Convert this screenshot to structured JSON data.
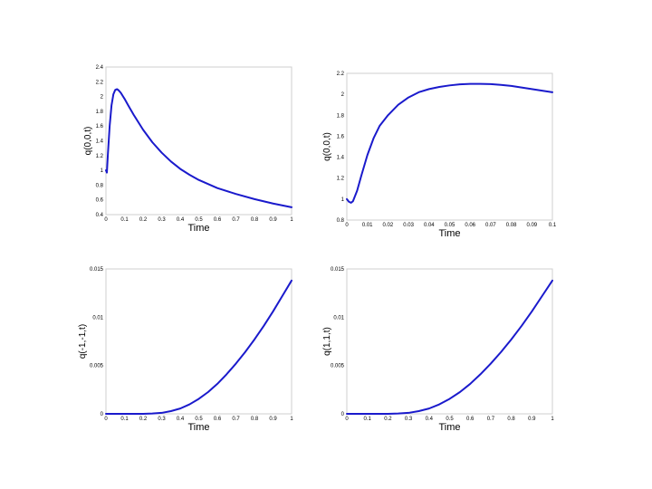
{
  "chart_data": [
    {
      "type": "line",
      "xlabel": "Time",
      "ylabel": "q(0,0,t)",
      "xlim": [
        0,
        1
      ],
      "ylim": [
        0.4,
        2.4
      ],
      "xticks": [
        "0",
        "0.1",
        "0.2",
        "0.3",
        "0.4",
        "0.5",
        "0.6",
        "0.7",
        "0.8",
        "0.9",
        "1"
      ],
      "yticks": [
        "0.4",
        "0.6",
        "0.8",
        "1",
        "1.2",
        "1.4",
        "1.6",
        "1.8",
        "2",
        "2.2",
        "2.4"
      ],
      "grid": false,
      "series": [
        {
          "color": "#1a1acc",
          "x": [
            0,
            0.005,
            0.01,
            0.02,
            0.03,
            0.04,
            0.05,
            0.06,
            0.07,
            0.08,
            0.1,
            0.12,
            0.15,
            0.2,
            0.25,
            0.3,
            0.35,
            0.4,
            0.45,
            0.5,
            0.6,
            0.7,
            0.8,
            0.9,
            1.0
          ],
          "y": [
            1.0,
            0.97,
            1.2,
            1.6,
            1.88,
            2.03,
            2.09,
            2.1,
            2.08,
            2.05,
            1.97,
            1.88,
            1.75,
            1.55,
            1.38,
            1.24,
            1.12,
            1.02,
            0.94,
            0.87,
            0.76,
            0.68,
            0.61,
            0.55,
            0.5
          ]
        }
      ]
    },
    {
      "type": "line",
      "xlabel": "Time",
      "ylabel": "q(0,0,t)",
      "xlim": [
        0,
        0.1
      ],
      "ylim": [
        0.8,
        2.2
      ],
      "xticks": [
        "0",
        "0.01",
        "0.02",
        "0.03",
        "0.04",
        "0.05",
        "0.06",
        "0.07",
        "0.08",
        "0.09",
        "0.1"
      ],
      "yticks": [
        "0.8",
        "1",
        "1.2",
        "1.4",
        "1.6",
        "1.8",
        "2",
        "2.2"
      ],
      "grid": false,
      "series": [
        {
          "color": "#1a1acc",
          "x": [
            0,
            0.001,
            0.002,
            0.003,
            0.005,
            0.007,
            0.01,
            0.013,
            0.016,
            0.02,
            0.025,
            0.03,
            0.035,
            0.04,
            0.045,
            0.05,
            0.055,
            0.06,
            0.065,
            0.07,
            0.075,
            0.08,
            0.085,
            0.09,
            0.095,
            0.1
          ],
          "y": [
            1.0,
            0.975,
            0.965,
            0.98,
            1.08,
            1.22,
            1.42,
            1.58,
            1.7,
            1.8,
            1.9,
            1.97,
            2.02,
            2.05,
            2.07,
            2.085,
            2.095,
            2.1,
            2.1,
            2.097,
            2.09,
            2.08,
            2.065,
            2.05,
            2.035,
            2.02
          ]
        }
      ]
    },
    {
      "type": "line",
      "xlabel": "Time",
      "ylabel": "q(-1,-1,t)",
      "xlim": [
        0,
        1
      ],
      "ylim": [
        0,
        0.015
      ],
      "xticks": [
        "0",
        "0.1",
        "0.2",
        "0.3",
        "0.4",
        "0.5",
        "0.6",
        "0.7",
        "0.8",
        "0.9",
        "1"
      ],
      "yticks": [
        "0",
        "0.005",
        "0.01",
        "0.015"
      ],
      "grid": false,
      "series": [
        {
          "color": "#1a1acc",
          "x": [
            0,
            0.1,
            0.2,
            0.25,
            0.3,
            0.35,
            0.4,
            0.45,
            0.5,
            0.55,
            0.6,
            0.65,
            0.7,
            0.75,
            0.8,
            0.85,
            0.9,
            0.95,
            1.0
          ],
          "y": [
            0,
            0,
            0.0,
            3e-05,
            0.0001,
            0.00028,
            0.00055,
            0.00098,
            0.00155,
            0.00225,
            0.0031,
            0.0041,
            0.0052,
            0.0064,
            0.0077,
            0.0091,
            0.0106,
            0.0122,
            0.0138
          ]
        }
      ]
    },
    {
      "type": "line",
      "xlabel": "Time",
      "ylabel": "q(1,1,t)",
      "xlim": [
        0,
        1
      ],
      "ylim": [
        0,
        0.015
      ],
      "xticks": [
        "0",
        "0.1",
        "0.2",
        "0.3",
        "0.4",
        "0.5",
        "0.6",
        "0.7",
        "0.8",
        "0.9",
        "1"
      ],
      "yticks": [
        "0",
        "0.005",
        "0.01",
        "0.015"
      ],
      "grid": false,
      "series": [
        {
          "color": "#1a1acc",
          "x": [
            0,
            0.1,
            0.2,
            0.25,
            0.3,
            0.35,
            0.4,
            0.45,
            0.5,
            0.55,
            0.6,
            0.65,
            0.7,
            0.75,
            0.8,
            0.85,
            0.9,
            0.95,
            1.0
          ],
          "y": [
            0,
            0,
            0.0,
            3e-05,
            0.0001,
            0.00028,
            0.00055,
            0.00098,
            0.00155,
            0.00225,
            0.0031,
            0.0041,
            0.0052,
            0.0064,
            0.0077,
            0.0091,
            0.0106,
            0.0122,
            0.0138
          ]
        }
      ]
    }
  ]
}
